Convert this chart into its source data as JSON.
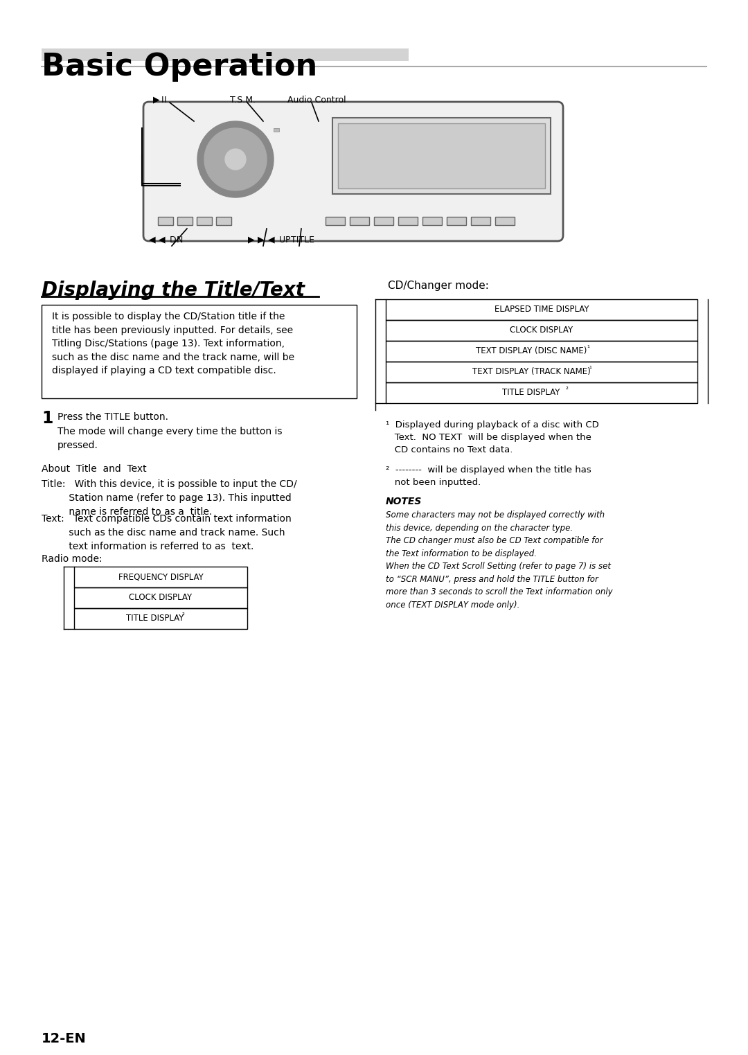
{
  "title": "Basic Operation",
  "section_title": "Displaying the Title/Text",
  "cd_changer_label": "CD/Changer mode:",
  "radio_mode_label": "Radio mode:",
  "info_box_text": "It is possible to display the CD/Station title if the\ntitle has been previously inputted. For details, see\nTitling Disc/Stations (page 13). Text information,\nsuch as the disc name and the track name, will be\ndisplayed if playing a CD text compatible disc.",
  "step1_text": "Press the TITLE button.\nThe mode will change every time the button is\npressed.",
  "about_title_text": "About  Title  and  Text",
  "title_def": "Title:   With this device, it is possible to input the CD/\n         Station name (refer to page 13). This inputted\n         name is referred to as a  title.",
  "text_def": "Text:   Text compatible CDs contain text information\n         such as the disc name and track name. Such\n         text information is referred to as  text.",
  "radio_boxes": [
    "FREQUENCY DISPLAY",
    "CLOCK DISPLAY",
    "TITLE DISPLAY ²"
  ],
  "cd_boxes": [
    "ELAPSED TIME DISPLAY",
    "CLOCK DISPLAY",
    "TEXT DISPLAY (DISC NAME) ¹",
    "TEXT DISPLAY (TRACK NAME) ¹",
    "TITLE DISPLAY ²"
  ],
  "footnote1": "¹  Displayed during playback of a disc with CD\n   Text.  NO TEXT  will be displayed when the\n   CD contains no Text data.",
  "footnote2": "²  --------  will be displayed when the title has\n   not been inputted.",
  "notes_title": "NOTES",
  "notes_text": "Some characters may not be displayed correctly with\nthis device, depending on the character type.\nThe CD changer must also be CD Text compatible for\nthe Text information to be displayed.\nWhen the CD Text Scroll Setting (refer to page 7) is set\nto “SCR MANU”, press and hold the TITLE button for\nmore than 3 seconds to scroll the Text information only\nonce (TEXT DISPLAY mode only).",
  "page_number": "12-EN",
  "bg_color": "#ffffff",
  "text_color": "#000000",
  "box_color": "#000000",
  "title_bar_color": "#d3d3d3"
}
